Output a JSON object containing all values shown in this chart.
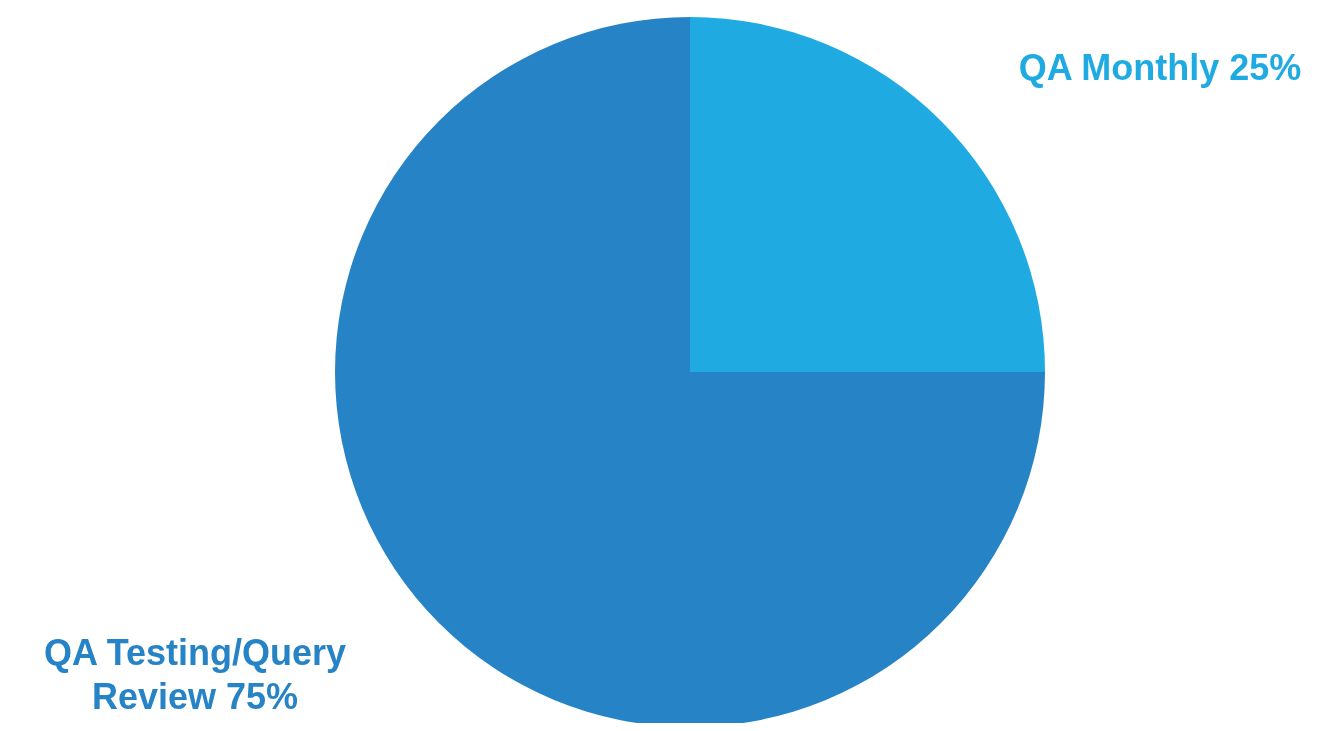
{
  "chart_data": {
    "type": "pie",
    "categories": [
      "QA Monthly",
      "QA Testing/Query Review"
    ],
    "values": [
      25,
      75
    ],
    "colors": [
      "#1fabe2",
      "#2683c6"
    ],
    "value_labels": [
      "25%",
      "75%"
    ]
  }
}
